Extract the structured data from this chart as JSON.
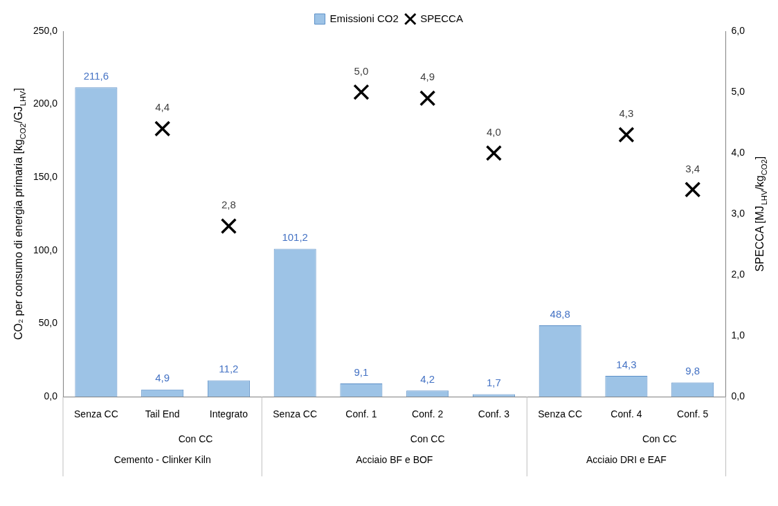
{
  "chart_data": {
    "type": "bar",
    "categories": [
      "Senza CC",
      "Tail End",
      "Integrato",
      "Senza CC",
      "Conf. 1",
      "Conf. 2",
      "Conf. 3",
      "Senza CC",
      "Conf. 4",
      "Conf. 5"
    ],
    "series": [
      {
        "name": "Emissioni CO2",
        "color": "#9dc3e6",
        "values": [
          211.6,
          4.9,
          11.2,
          101.2,
          9.1,
          4.2,
          1.7,
          48.8,
          14.3,
          9.8
        ],
        "value_labels": [
          "211,6",
          "4,9",
          "11,2",
          "101,2",
          "9,1",
          "4,2",
          "1,7",
          "48,8",
          "14,3",
          "9,8"
        ]
      },
      {
        "name": "SPECCA",
        "type": "scatter",
        "axis": "y2",
        "color": "#000000",
        "marker": "cross",
        "values": [
          null,
          4.4,
          2.8,
          null,
          5.0,
          4.9,
          4.0,
          null,
          4.3,
          3.4
        ],
        "value_labels": [
          null,
          "4,4",
          "2,8",
          null,
          "5,0",
          "4,9",
          "4,0",
          null,
          "4,3",
          "3,4"
        ]
      }
    ],
    "ylabel": "CO₂ per consumo di energia primaria [kg$_{CO2}$/GJ$_{LHV}$]",
    "y2label": "SPECCA [MJ$_{LHV}$/kg$_{CO2}$]",
    "ylim": [
      0,
      250
    ],
    "yticks": [
      {
        "value": 0,
        "label": "0,0"
      },
      {
        "value": 50,
        "label": "50,0"
      },
      {
        "value": 100,
        "label": "100,0"
      },
      {
        "value": 150,
        "label": "150,0"
      },
      {
        "value": 200,
        "label": "200,0"
      },
      {
        "value": 250,
        "label": "250,0"
      }
    ],
    "y2lim": [
      0,
      6
    ],
    "y2ticks": [
      {
        "value": 0,
        "label": "0,0"
      },
      {
        "value": 1,
        "label": "1,0"
      },
      {
        "value": 2,
        "label": "2,0"
      },
      {
        "value": 3,
        "label": "3,0"
      },
      {
        "value": 4,
        "label": "4,0"
      },
      {
        "value": 5,
        "label": "5,0"
      },
      {
        "value": 6,
        "label": "6,0"
      }
    ],
    "annotations": [
      "Con CC",
      "Con CC",
      "Con CC",
      "Cemento - Clinker Kiln",
      "Acciaio BF e BOF",
      "Acciaio DRI e EAF"
    ],
    "legend": "top",
    "grid": false
  }
}
